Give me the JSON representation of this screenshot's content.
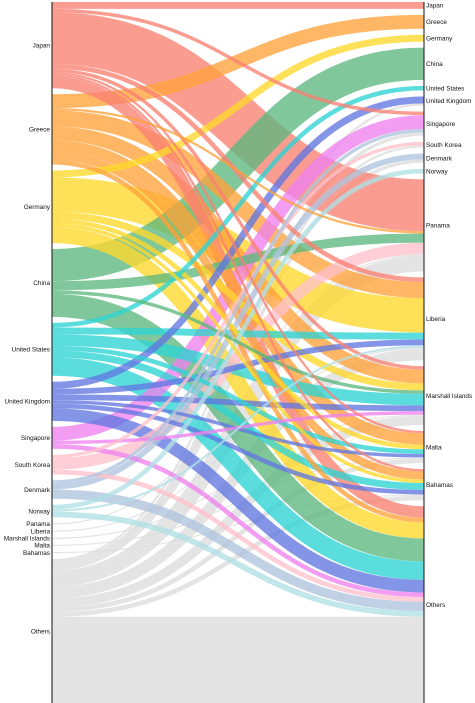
{
  "chart_data": {
    "type": "sankey",
    "title": "",
    "colors": {
      "Japan": "#fa8072",
      "Greece": "#ffa23a",
      "Germany": "#ffd92a",
      "China": "#5cb77f",
      "United States": "#2ed3d3",
      "United Kingdom": "#6177e0",
      "Singapore": "#ee82ee",
      "South Korea": "#ffc0cb",
      "Denmark": "#b0c4de",
      "Norway": "#b0e0e6",
      "Panama": "#dcdcdc",
      "Liberia": "#dcdcdc",
      "Marshall Islands": "#dcdcdc",
      "Malta": "#dcdcdc",
      "Bahamas": "#dcdcdc",
      "Others": "#dcdcdc"
    },
    "source_nodes": [
      "Japan",
      "Greece",
      "Germany",
      "China",
      "United States",
      "United Kingdom",
      "Singapore",
      "South Korea",
      "Denmark",
      "Norway",
      "Panama",
      "Liberia",
      "Marshall Islands",
      "Malta",
      "Bahamas",
      "Others"
    ],
    "target_nodes": [
      "Japan",
      "Greece",
      "Germany",
      "China",
      "United States",
      "United Kingdom",
      "Singapore",
      "South Korea",
      "Denmark",
      "Norway",
      "Panama",
      "Liberia",
      "Marshall Islands",
      "Malta",
      "Bahamas",
      "Others"
    ],
    "links": [
      {
        "source": "Japan",
        "target": "Japan",
        "value": 6
      },
      {
        "source": "Japan",
        "target": "Panama",
        "value": 45
      },
      {
        "source": "Japan",
        "target": "Liberia",
        "value": 4
      },
      {
        "source": "Japan",
        "target": "Marshall Islands",
        "value": 3
      },
      {
        "source": "Japan",
        "target": "Singapore",
        "value": 3
      },
      {
        "source": "Japan",
        "target": "Malta",
        "value": 2
      },
      {
        "source": "Japan",
        "target": "Bahamas",
        "value": 2
      },
      {
        "source": "Japan",
        "target": "Others",
        "value": 10
      },
      {
        "source": "Greece",
        "target": "Greece",
        "value": 12
      },
      {
        "source": "Greece",
        "target": "Liberia",
        "value": 14
      },
      {
        "source": "Greece",
        "target": "Marshall Islands",
        "value": 12
      },
      {
        "source": "Greece",
        "target": "Malta",
        "value": 10
      },
      {
        "source": "Greece",
        "target": "Bahamas",
        "value": 7
      },
      {
        "source": "Greece",
        "target": "Panama",
        "value": 2
      },
      {
        "source": "Greece",
        "target": "Others",
        "value": 4
      },
      {
        "source": "Germany",
        "target": "Germany",
        "value": 6
      },
      {
        "source": "Germany",
        "target": "Liberia",
        "value": 30
      },
      {
        "source": "Germany",
        "target": "Marshall Islands",
        "value": 6
      },
      {
        "source": "Germany",
        "target": "Malta",
        "value": 4
      },
      {
        "source": "Germany",
        "target": "Bahamas",
        "value": 3
      },
      {
        "source": "Germany",
        "target": "Others",
        "value": 14
      },
      {
        "source": "China",
        "target": "China",
        "value": 28
      },
      {
        "source": "China",
        "target": "Panama",
        "value": 8
      },
      {
        "source": "China",
        "target": "Marshall Islands",
        "value": 3
      },
      {
        "source": "China",
        "target": "Others",
        "value": 20
      },
      {
        "source": "United States",
        "target": "United States",
        "value": 4
      },
      {
        "source": "United States",
        "target": "Marshall Islands",
        "value": 10
      },
      {
        "source": "United States",
        "target": "Liberia",
        "value": 6
      },
      {
        "source": "United States",
        "target": "Bahamas",
        "value": 6
      },
      {
        "source": "United States",
        "target": "Malta",
        "value": 4
      },
      {
        "source": "United States",
        "target": "Others",
        "value": 16
      },
      {
        "source": "United Kingdom",
        "target": "United Kingdom",
        "value": 6
      },
      {
        "source": "United Kingdom",
        "target": "Liberia",
        "value": 5
      },
      {
        "source": "United Kingdom",
        "target": "Marshall Islands",
        "value": 5
      },
      {
        "source": "United Kingdom",
        "target": "Bahamas",
        "value": 4
      },
      {
        "source": "United Kingdom",
        "target": "Malta",
        "value": 3
      },
      {
        "source": "United Kingdom",
        "target": "Others",
        "value": 11
      },
      {
        "source": "Singapore",
        "target": "Singapore",
        "value": 12
      },
      {
        "source": "Singapore",
        "target": "Marshall Islands",
        "value": 3
      },
      {
        "source": "Singapore",
        "target": "Others",
        "value": 4
      },
      {
        "source": "South Korea",
        "target": "South Korea",
        "value": 3
      },
      {
        "source": "South Korea",
        "target": "Panama",
        "value": 10
      },
      {
        "source": "South Korea",
        "target": "Others",
        "value": 4
      },
      {
        "source": "Denmark",
        "target": "Denmark",
        "value": 5
      },
      {
        "source": "Denmark",
        "target": "Singapore",
        "value": 3
      },
      {
        "source": "Denmark",
        "target": "Others",
        "value": 8
      },
      {
        "source": "Norway",
        "target": "Norway",
        "value": 4
      },
      {
        "source": "Norway",
        "target": "Liberia",
        "value": 2
      },
      {
        "source": "Norway",
        "target": "Others",
        "value": 5
      },
      {
        "source": "Panama",
        "target": "Panama",
        "value": 1
      },
      {
        "source": "Liberia",
        "target": "Liberia",
        "value": 1
      },
      {
        "source": "Marshall Islands",
        "target": "Marshall Islands",
        "value": 1
      },
      {
        "source": "Malta",
        "target": "Malta",
        "value": 1
      },
      {
        "source": "Bahamas",
        "target": "Bahamas",
        "value": 1
      },
      {
        "source": "Others",
        "target": "Others",
        "value": 75
      },
      {
        "source": "Others",
        "target": "Panama",
        "value": 14
      },
      {
        "source": "Others",
        "target": "Liberia",
        "value": 10
      },
      {
        "source": "Others",
        "target": "Marshall Islands",
        "value": 8
      },
      {
        "source": "Others",
        "target": "Malta",
        "value": 4
      },
      {
        "source": "Others",
        "target": "Bahamas",
        "value": 4
      },
      {
        "source": "Others",
        "target": "Denmark",
        "value": 3
      },
      {
        "source": "Others",
        "target": "Singapore",
        "value": 3
      },
      {
        "source": "Others",
        "target": "United Kingdom",
        "value": 2
      },
      {
        "source": "Others",
        "target": "South Korea",
        "value": 2
      }
    ]
  }
}
